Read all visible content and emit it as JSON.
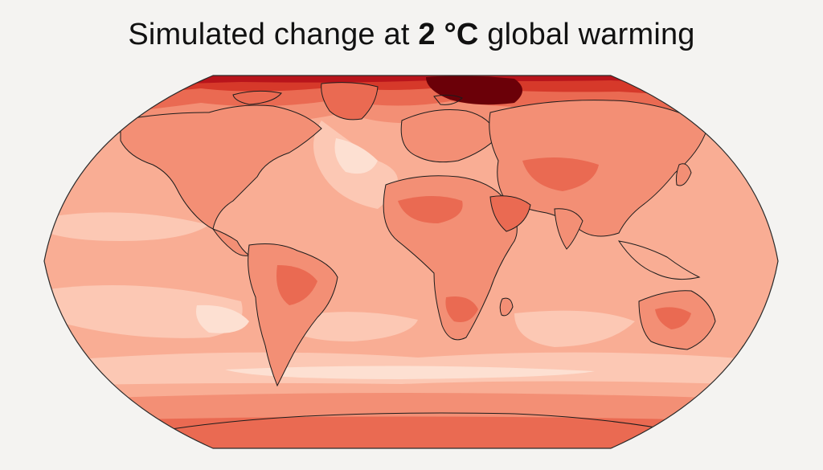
{
  "title": {
    "prefix": "Simulated change at ",
    "emphasis": "2 °C",
    "suffix": " global warming"
  },
  "map": {
    "projection": "robinson",
    "palette": {
      "lightest": "#fde0d2",
      "light": "#fcc8b4",
      "base": "#f9ad94",
      "mid": "#f38f75",
      "warm": "#ea6a52",
      "hot": "#d6392a",
      "hotter": "#b8141b",
      "extreme": "#6b0008",
      "coastline": "#1c1c1c"
    }
  }
}
